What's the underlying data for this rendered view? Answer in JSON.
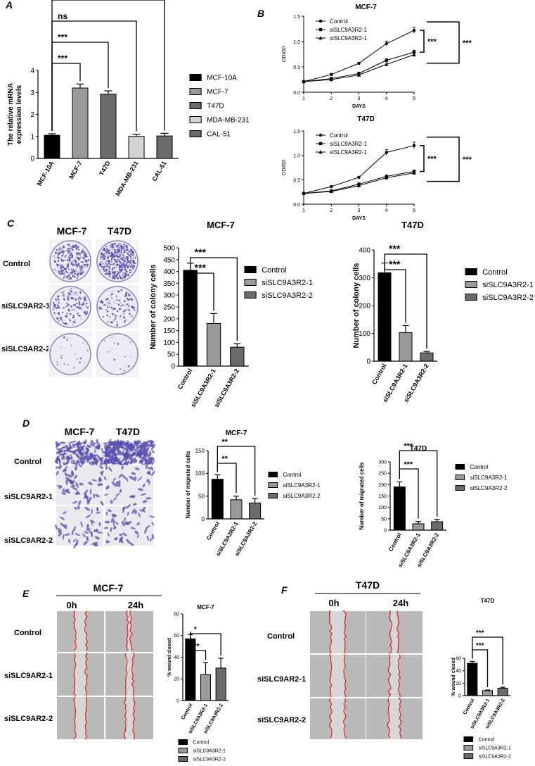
{
  "colors": {
    "black": "#000000",
    "dark_gray": "#6a6a6a",
    "mid_gray": "#9a9a9a",
    "light_gray": "#d4d4d4",
    "stain_purple": "#5a4fb0",
    "wound_red": "#e0201a"
  },
  "panel_labels": {
    "a": "A",
    "b": "B",
    "c": "C",
    "d": "D",
    "e": "E",
    "f": "F"
  },
  "photo_labels": {
    "cell_lines": [
      "MCF-7",
      "T47D"
    ],
    "c_rows": [
      "Control",
      "siSLC9AR2-1",
      "siSLC9AR2-2"
    ],
    "d_rows": [
      "Control",
      "siSLC9AR2-1",
      "siSLC9AR2-2"
    ],
    "e_rows": [
      "Control",
      "siSLC9AR2-1",
      "siSLC9AR2-2"
    ],
    "f_rows": [
      "Control",
      "siSLC9AR2-1",
      "siSLC9AR2-2"
    ],
    "time_points": [
      "0h",
      "24h"
    ],
    "e_header": "MCF-7",
    "f_header": "T47D"
  },
  "chart_data": [
    {
      "id": "A",
      "type": "bar",
      "ylabel": "The relative mRNA expression levels",
      "categories": [
        "MCF-10A",
        "MCF-7",
        "T47D",
        "MDA-MB-231",
        "CAL-51"
      ],
      "values": [
        1.05,
        3.2,
        2.92,
        1.0,
        1.02
      ],
      "errors": [
        0.07,
        0.18,
        0.15,
        0.1,
        0.12
      ],
      "ylim": [
        0,
        4
      ],
      "yticks": [
        0,
        1,
        2,
        3,
        4
      ],
      "legend": [
        "MCF-10A",
        "MCF-7",
        "T47D",
        "MDA-MB-231",
        "CAL-51"
      ],
      "significance": [
        "***",
        "***",
        "ns",
        "ns"
      ]
    },
    {
      "id": "B1",
      "type": "line",
      "title": "MCF-7",
      "xlabel": "DAYS",
      "ylabel": "OD450",
      "x": [
        1,
        2,
        3,
        4,
        5
      ],
      "xlim": [
        1,
        5
      ],
      "ylim": [
        0,
        1.5
      ],
      "yticks": [
        0.0,
        0.5,
        1.0,
        1.5
      ],
      "series": [
        {
          "name": "Control",
          "values": [
            0.21,
            0.35,
            0.57,
            0.96,
            1.22
          ],
          "errors": [
            0.02,
            0.02,
            0.02,
            0.05,
            0.06
          ]
        },
        {
          "name": "siSLC9A3R2-1",
          "values": [
            0.21,
            0.27,
            0.37,
            0.63,
            0.79
          ],
          "errors": [
            0.01,
            0.02,
            0.02,
            0.03,
            0.04
          ]
        },
        {
          "name": "siSLC9A3R2-1",
          "values": [
            0.21,
            0.25,
            0.34,
            0.55,
            0.74
          ],
          "errors": [
            0.01,
            0.02,
            0.02,
            0.03,
            0.04
          ]
        }
      ],
      "significance": [
        "***",
        "***"
      ]
    },
    {
      "id": "B2",
      "type": "line",
      "title": "T47D",
      "xlabel": "DAYS",
      "ylabel": "OD450",
      "x": [
        1,
        2,
        3,
        4,
        5
      ],
      "xlim": [
        1,
        5
      ],
      "ylim": [
        0,
        1.5
      ],
      "yticks": [
        0.0,
        0.5,
        1.0,
        1.5
      ],
      "series": [
        {
          "name": "Control",
          "values": [
            0.22,
            0.36,
            0.55,
            1.06,
            1.2
          ],
          "errors": [
            0.01,
            0.02,
            0.02,
            0.06,
            0.07
          ]
        },
        {
          "name": "siSLC9A3R2-1",
          "values": [
            0.22,
            0.27,
            0.41,
            0.57,
            0.67
          ],
          "errors": [
            0.01,
            0.02,
            0.02,
            0.03,
            0.03
          ]
        },
        {
          "name": "siSLC9A3R2-1",
          "values": [
            0.22,
            0.26,
            0.38,
            0.54,
            0.64
          ],
          "errors": [
            0.01,
            0.02,
            0.02,
            0.03,
            0.03
          ]
        }
      ],
      "significance": [
        "***",
        "***"
      ]
    },
    {
      "id": "C1",
      "type": "bar",
      "title": "MCF-7",
      "ylabel": "Number of colony cells",
      "categories": [
        "Control",
        "siSLC9A3R2-1",
        "siSLC9A3R2-2"
      ],
      "values": [
        405,
        180,
        80
      ],
      "errors": [
        30,
        42,
        15
      ],
      "ylim": [
        0,
        500
      ],
      "yticks": [
        0,
        50,
        100,
        150,
        200,
        250,
        300,
        350,
        400,
        450,
        500
      ],
      "legend": [
        "Control",
        "siSLC9A3R2-1",
        "siSLC9A3R2-2"
      ],
      "significance": [
        "***",
        "***"
      ]
    },
    {
      "id": "C2",
      "type": "bar",
      "title": "T47D",
      "ylabel": "Number of colony cells",
      "categories": [
        "Control",
        "siSLC9A3R2-1",
        "siSLC9A3R2-2"
      ],
      "values": [
        318,
        103,
        30
      ],
      "errors": [
        35,
        25,
        5
      ],
      "ylim": [
        0,
        400
      ],
      "yticks": [
        0,
        100,
        200,
        300,
        400
      ],
      "legend": [
        "Control",
        "siSLC9A3R2-1",
        "siSLC9A3R2-2"
      ],
      "significance": [
        "***",
        "***"
      ]
    },
    {
      "id": "D1",
      "type": "bar",
      "title": "MCF-7",
      "ylabel": "Number of migrated cells",
      "categories": [
        "Control",
        "siSLC9A3R2-1",
        "siSLC9A3R2-2"
      ],
      "values": [
        87,
        42,
        35
      ],
      "errors": [
        10,
        8,
        10
      ],
      "ylim": [
        0,
        150
      ],
      "yticks": [
        0,
        50,
        100,
        150
      ],
      "legend": [
        "Control",
        "siSLC9A3R2-1",
        "siSLC9A3R2-2"
      ],
      "significance": [
        "**",
        "**"
      ]
    },
    {
      "id": "D2",
      "type": "bar",
      "title": "T47D",
      "ylabel": "Number of migrated cells",
      "categories": [
        "Control",
        "siSLC9A3R2-1",
        "siSLC9A3R2-2"
      ],
      "values": [
        190,
        28,
        37
      ],
      "errors": [
        22,
        10,
        10
      ],
      "ylim": [
        0,
        300
      ],
      "yticks": [
        0,
        50,
        100,
        150,
        200,
        250,
        300
      ],
      "legend": [
        "Control",
        "siSLC9A3R2-1",
        "siSLC9A3R2-2"
      ],
      "significance": [
        "***",
        "***"
      ]
    },
    {
      "id": "E",
      "type": "bar",
      "title": "MCF-7",
      "ylabel": "% wound closed",
      "categories": [
        "Control",
        "siSLC9A3R2-1",
        "siSLC9A3R2-2"
      ],
      "values": [
        57,
        24,
        30
      ],
      "errors": [
        4,
        11,
        9
      ],
      "ylim": [
        0,
        80
      ],
      "yticks": [
        0,
        20,
        40,
        60,
        80
      ],
      "legend": [
        "Control",
        "siSLC9A3R2-1",
        "siSLC9A3R2-2"
      ],
      "significance": [
        "**",
        "*"
      ]
    },
    {
      "id": "F",
      "type": "bar",
      "title": "T47D",
      "ylabel": "% wound closed",
      "categories": [
        "Control",
        "siSLC9A3R2-1",
        "siSLC9A3R2-2"
      ],
      "values": [
        52,
        8,
        12
      ],
      "errors": [
        3,
        1,
        1.5
      ],
      "ylim": [
        0,
        60
      ],
      "yticks": [
        0,
        20,
        40,
        60
      ],
      "legend": [
        "Control",
        "siSLC9A3R2-1",
        "siSLC9A3R2-2"
      ],
      "significance": [
        "***",
        "***"
      ]
    }
  ]
}
